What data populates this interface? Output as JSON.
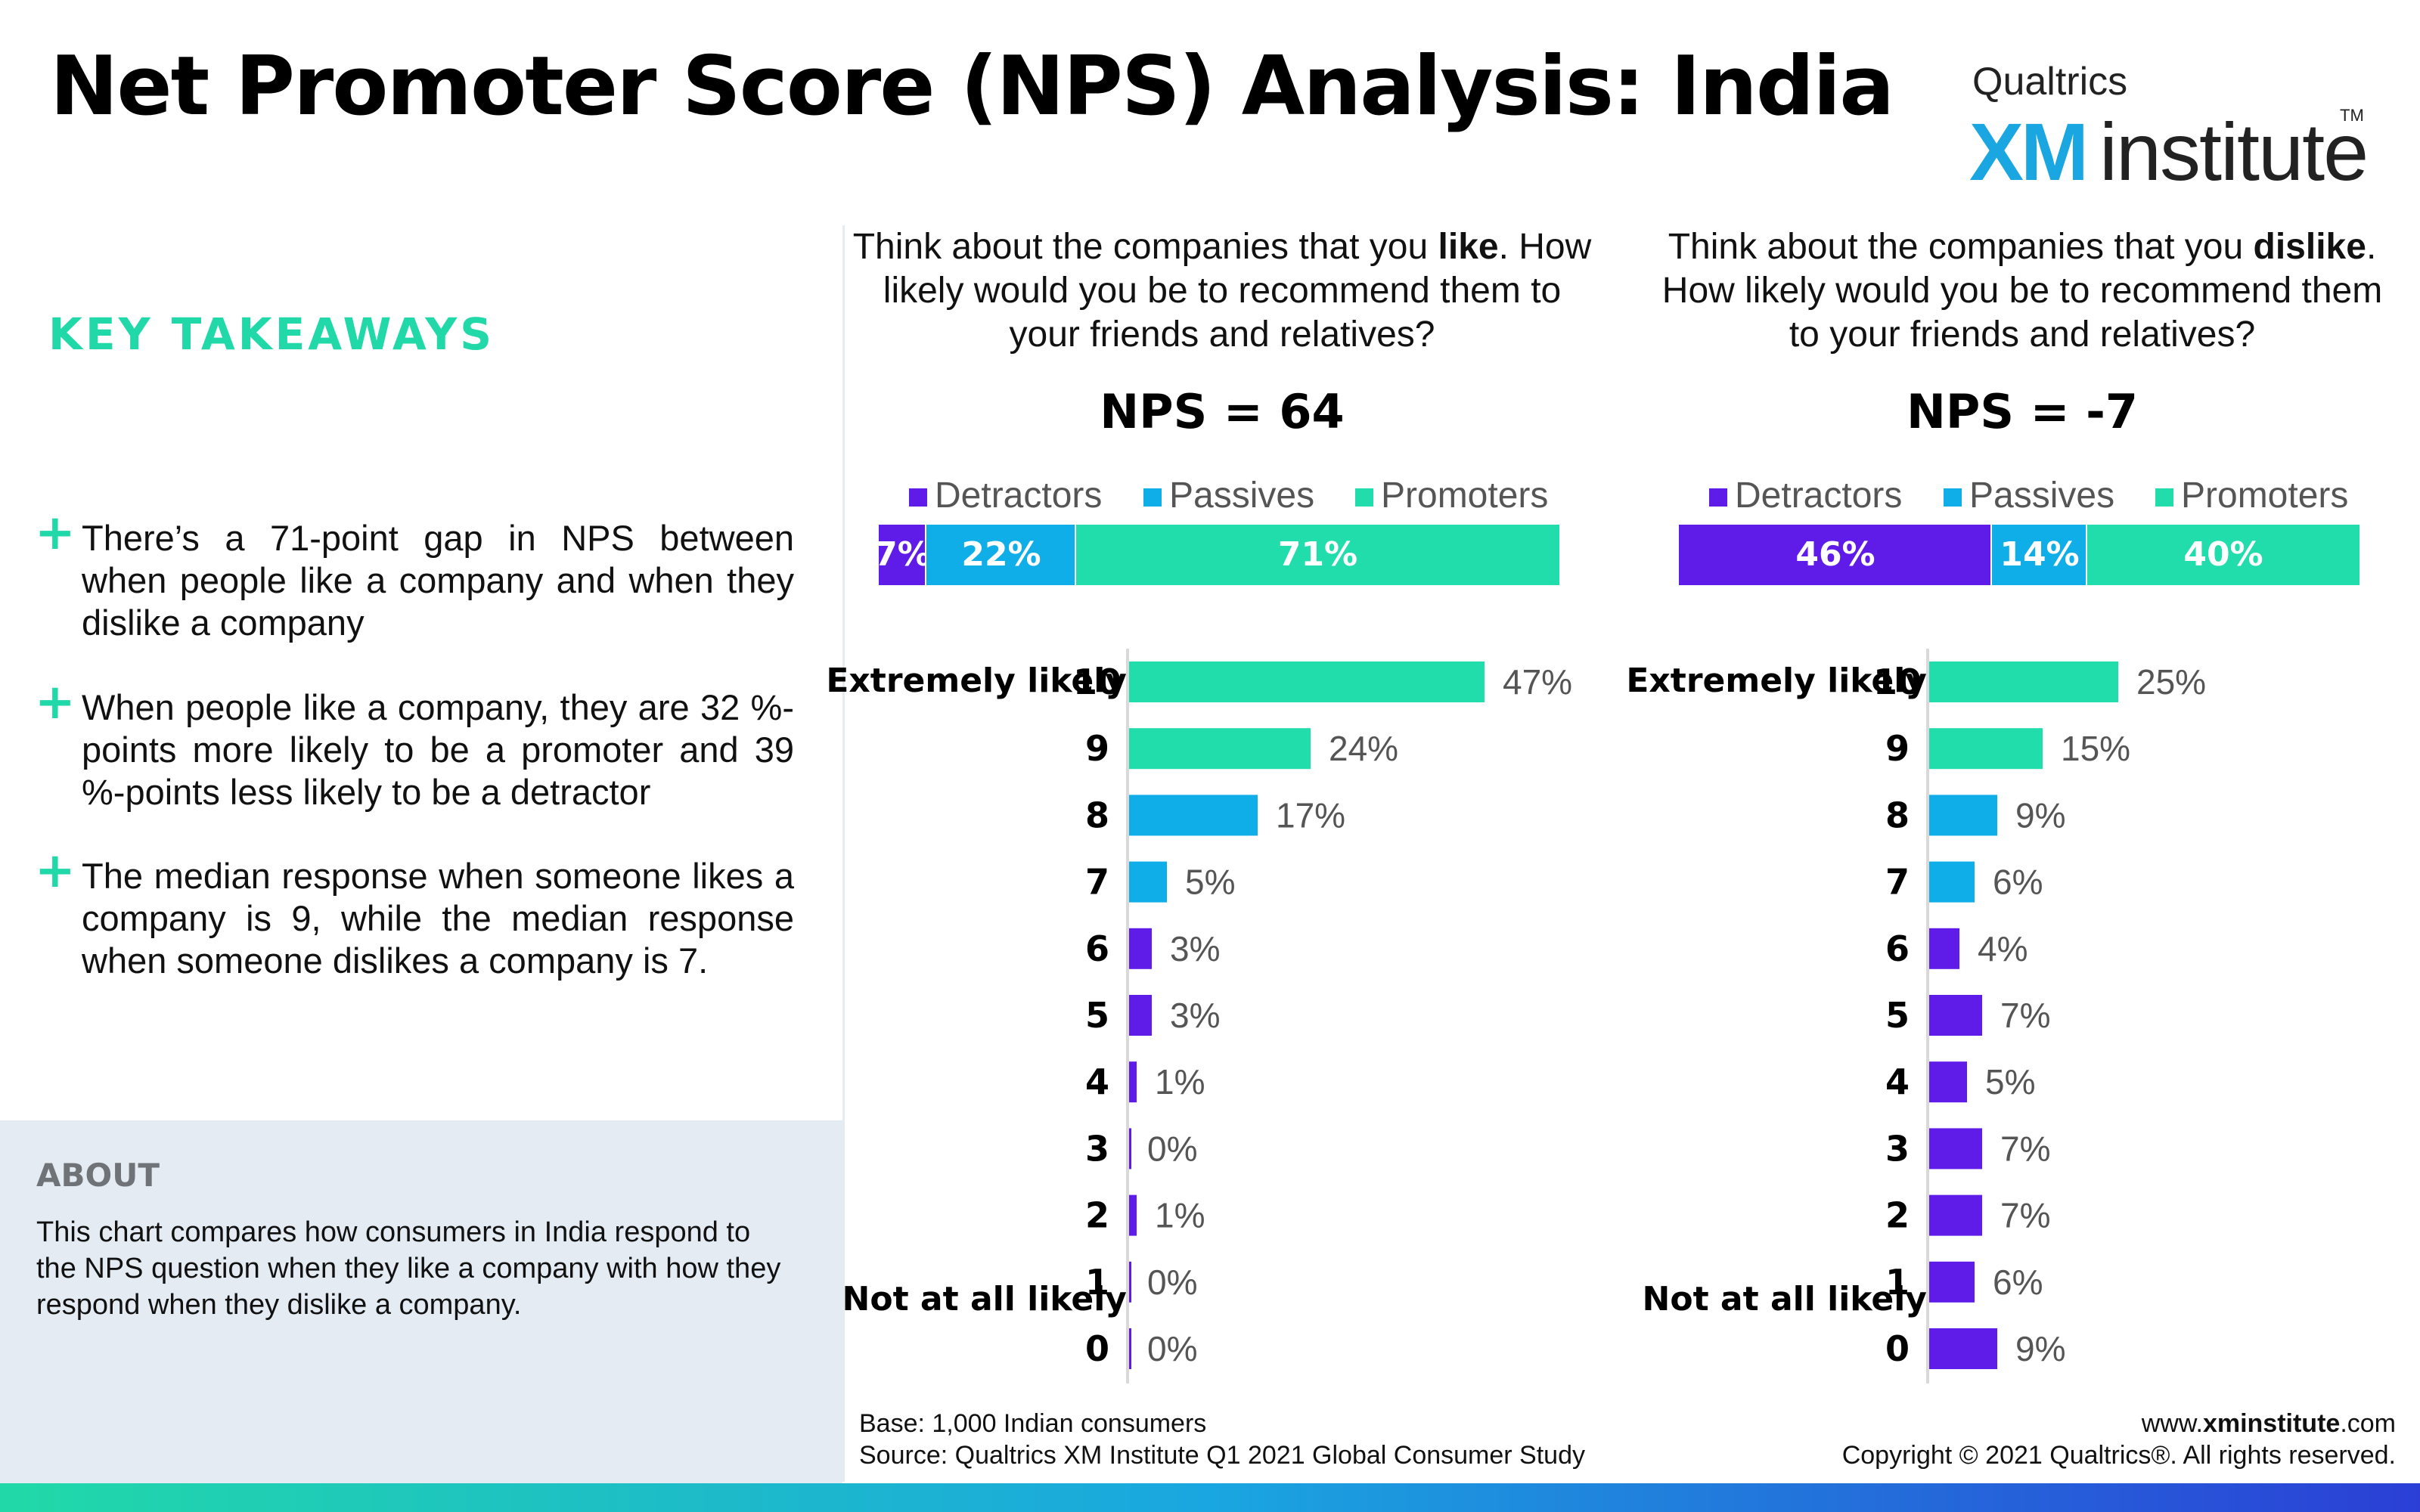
{
  "title": "Net Promoter Score (NPS) Analysis: India",
  "logo": {
    "brand": "Qualtrics",
    "xm": "XM",
    "institute": "institute",
    "tm": "TM"
  },
  "takeaways": {
    "heading": "KEY TAKEAWAYS",
    "items": [
      "There’s a 71-point gap in NPS between when people like a company and when they dislike a company",
      "When people like a company, they are 32 %-points more likely to be a promoter and 39 %-points less likely to be a detractor",
      "The median response when someone likes a company is 9, while the median response when someone dislikes a company is 7."
    ]
  },
  "about": {
    "heading": "ABOUT",
    "text": "This chart compares how consumers in India respond to the NPS question when they like a company with how they respond when they dislike a company."
  },
  "colors": {
    "detractors": "#5f1be8",
    "passives": "#10aee8",
    "promoters": "#21ddab",
    "accent": "#21d9a8"
  },
  "legend": [
    "Detractors",
    "Passives",
    "Promoters"
  ],
  "scale_labels": {
    "top": "Extremely likely",
    "bottom": "Not at all likely"
  },
  "chart_data": [
    {
      "type": "bar",
      "question_pre": "Think about the companies that you ",
      "question_bold": "like",
      "question_post": ". How likely would you be to recommend them to your friends and relatives?",
      "nps_label": "NPS = 64",
      "nps": 64,
      "summary": {
        "detractors": 7,
        "passives": 22,
        "promoters": 71
      },
      "summary_labels": [
        "7%",
        "22%",
        "71%"
      ],
      "categories": [
        "10",
        "9",
        "8",
        "7",
        "6",
        "5",
        "4",
        "3",
        "2",
        "1",
        "0"
      ],
      "values": [
        47,
        24,
        17,
        5,
        3,
        3,
        1,
        0,
        1,
        0,
        0
      ],
      "value_labels": [
        "47%",
        "24%",
        "17%",
        "5%",
        "3%",
        "3%",
        "1%",
        "0%",
        "1%",
        "0%",
        "0%"
      ]
    },
    {
      "type": "bar",
      "question_pre": "Think about the companies that you ",
      "question_bold": "dislike",
      "question_post": ". How likely would you be to recommend them to your friends and relatives?",
      "nps_label": "NPS = -7",
      "nps": -7,
      "summary": {
        "detractors": 46,
        "passives": 14,
        "promoters": 40
      },
      "summary_labels": [
        "46%",
        "14%",
        "40%"
      ],
      "categories": [
        "10",
        "9",
        "8",
        "7",
        "6",
        "5",
        "4",
        "3",
        "2",
        "1",
        "0"
      ],
      "values": [
        25,
        15,
        9,
        6,
        4,
        7,
        5,
        7,
        7,
        6,
        9
      ],
      "value_labels": [
        "25%",
        "15%",
        "9%",
        "6%",
        "4%",
        "7%",
        "5%",
        "7%",
        "7%",
        "6%",
        "9%"
      ]
    }
  ],
  "footer": {
    "base": "Base: 1,000 Indian consumers",
    "source": "Source: Qualtrics XM Institute Q1 2021 Global Consumer Study",
    "url_pre": "www.",
    "url_bold": "xminstitute",
    "url_post": ".com",
    "copyright": "Copyright © 2021 Qualtrics®. All rights reserved."
  }
}
